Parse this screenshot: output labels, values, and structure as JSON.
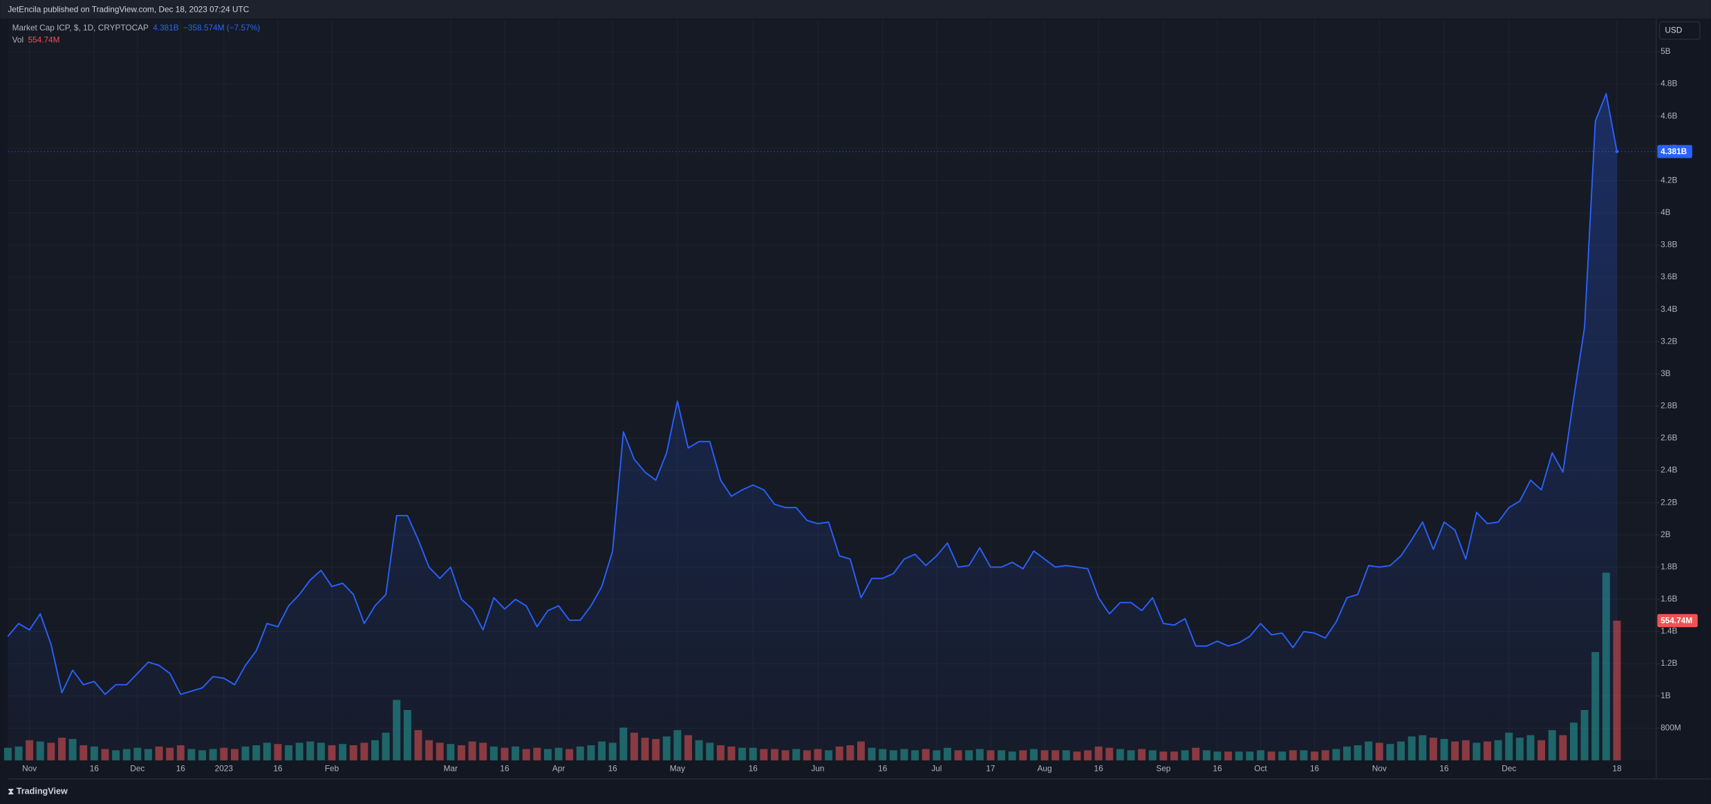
{
  "header": {
    "text": "JetEncila published on TradingView.com, Dec 18, 2023 07:24 UTC"
  },
  "footer": {
    "logo": "TradingView"
  },
  "chart_data": {
    "type": "line",
    "title": "Market Cap ICP, $, 1D, CRYPTOCAP",
    "last_value_label": "4.381B",
    "change": "−358.574M (−7.57%)",
    "currency": "USD",
    "color": "#2962ff",
    "grid": true,
    "categories": [
      null,
      null,
      "Nov",
      null,
      null,
      null,
      null,
      null,
      "16",
      null,
      null,
      null,
      "Dec",
      null,
      null,
      null,
      "16",
      null,
      null,
      null,
      "2023",
      null,
      null,
      null,
      null,
      "16",
      null,
      null,
      null,
      null,
      "Feb",
      null,
      null,
      null,
      null,
      null,
      null,
      null,
      null,
      null,
      null,
      "Mar",
      null,
      null,
      null,
      null,
      "16",
      null,
      null,
      null,
      null,
      "Apr",
      null,
      null,
      null,
      null,
      "16",
      null,
      null,
      null,
      null,
      null,
      "May",
      null,
      null,
      null,
      null,
      null,
      null,
      "16",
      null,
      null,
      null,
      null,
      null,
      "Jun",
      null,
      null,
      null,
      null,
      null,
      "16",
      null,
      null,
      null,
      null,
      "Jul",
      null,
      null,
      null,
      null,
      "17",
      null,
      null,
      null,
      null,
      "Aug",
      null,
      null,
      null,
      null,
      "16",
      null,
      null,
      null,
      null,
      null,
      "Sep",
      null,
      null,
      null,
      null,
      "16",
      null,
      null,
      null,
      "Oct",
      null,
      null,
      null,
      null,
      "16",
      null,
      null,
      null,
      null,
      null,
      "Nov",
      null,
      null,
      null,
      null,
      null,
      "16",
      null,
      null,
      null,
      null,
      null,
      "Dec",
      null,
      null,
      null,
      null,
      null,
      null,
      null,
      null,
      null,
      "18"
    ],
    "values": [
      1.37,
      1.45,
      1.41,
      1.51,
      1.32,
      1.02,
      1.16,
      1.07,
      1.09,
      1.01,
      1.07,
      1.07,
      1.14,
      1.21,
      1.19,
      1.14,
      1.01,
      1.03,
      1.05,
      1.12,
      1.11,
      1.07,
      1.19,
      1.28,
      1.45,
      1.43,
      1.56,
      1.63,
      1.72,
      1.78,
      1.68,
      1.7,
      1.63,
      1.45,
      1.56,
      1.63,
      2.12,
      2.12,
      1.97,
      1.8,
      1.73,
      1.8,
      1.6,
      1.54,
      1.41,
      1.61,
      1.54,
      1.6,
      1.56,
      1.43,
      1.53,
      1.56,
      1.47,
      1.47,
      1.56,
      1.68,
      1.9,
      2.64,
      2.47,
      2.39,
      2.34,
      2.51,
      2.83,
      2.54,
      2.58,
      2.58,
      2.34,
      2.24,
      2.28,
      2.31,
      2.28,
      2.19,
      2.17,
      2.17,
      2.09,
      2.07,
      2.08,
      1.87,
      1.85,
      1.61,
      1.73,
      1.73,
      1.76,
      1.85,
      1.88,
      1.81,
      1.87,
      1.95,
      1.8,
      1.81,
      1.92,
      1.8,
      1.8,
      1.83,
      1.79,
      1.9,
      1.85,
      1.8,
      1.81,
      1.8,
      1.79,
      1.61,
      1.51,
      1.58,
      1.58,
      1.53,
      1.61,
      1.45,
      1.44,
      1.48,
      1.31,
      1.31,
      1.34,
      1.31,
      1.33,
      1.37,
      1.45,
      1.38,
      1.39,
      1.3,
      1.4,
      1.39,
      1.36,
      1.46,
      1.61,
      1.63,
      1.81,
      1.8,
      1.81,
      1.87,
      1.97,
      2.08,
      1.91,
      2.08,
      2.03,
      1.85,
      2.14,
      2.07,
      2.08,
      2.17,
      2.21,
      2.34,
      2.28,
      2.51,
      2.39,
      2.85,
      3.29,
      4.57,
      4.74,
      4.381
    ],
    "ylim": [
      0.6,
      5.2
    ],
    "yticks": [
      {
        "value": 0.8,
        "label": "800M"
      },
      {
        "value": 1,
        "label": "1B"
      },
      {
        "value": 1.2,
        "label": "1.2B"
      },
      {
        "value": 1.4,
        "label": "1.4B"
      },
      {
        "value": 1.6,
        "label": "1.6B"
      },
      {
        "value": 1.8,
        "label": "1.8B"
      },
      {
        "value": 2,
        "label": "2B"
      },
      {
        "value": 2.2,
        "label": "2.2B"
      },
      {
        "value": 2.4,
        "label": "2.4B"
      },
      {
        "value": 2.6,
        "label": "2.6B"
      },
      {
        "value": 2.8,
        "label": "2.8B"
      },
      {
        "value": 3,
        "label": "3B"
      },
      {
        "value": 3.2,
        "label": "3.2B"
      },
      {
        "value": 3.4,
        "label": "3.4B"
      },
      {
        "value": 3.6,
        "label": "3.6B"
      },
      {
        "value": 3.8,
        "label": "3.8B"
      },
      {
        "value": 4,
        "label": "4B"
      },
      {
        "value": 4.2,
        "label": "4.2B"
      },
      {
        "value": 4.4,
        "label": "4.4B"
      },
      {
        "value": 4.6,
        "label": "4.6B"
      },
      {
        "value": 4.8,
        "label": "4.8B"
      },
      {
        "value": 5,
        "label": "5B"
      }
    ],
    "volume": {
      "name": "Vol",
      "last_value_label": "554.74M",
      "up_color": "#26a69a",
      "down_color": "#ef5350",
      "values": [
        50,
        55,
        80,
        75,
        70,
        90,
        85,
        60,
        55,
        45,
        40,
        45,
        50,
        45,
        55,
        50,
        60,
        45,
        40,
        45,
        50,
        45,
        55,
        60,
        70,
        65,
        60,
        70,
        75,
        70,
        60,
        65,
        60,
        70,
        80,
        110,
        240,
        200,
        120,
        80,
        70,
        65,
        60,
        75,
        70,
        55,
        50,
        55,
        45,
        50,
        45,
        50,
        45,
        55,
        60,
        75,
        70,
        130,
        110,
        90,
        85,
        95,
        120,
        100,
        80,
        70,
        60,
        55,
        50,
        50,
        45,
        45,
        40,
        45,
        40,
        45,
        40,
        55,
        60,
        75,
        50,
        45,
        40,
        45,
        40,
        45,
        40,
        50,
        40,
        40,
        45,
        40,
        40,
        35,
        40,
        45,
        40,
        40,
        40,
        35,
        40,
        55,
        50,
        45,
        40,
        45,
        40,
        35,
        35,
        40,
        50,
        40,
        35,
        35,
        35,
        35,
        40,
        35,
        35,
        40,
        40,
        35,
        40,
        45,
        55,
        60,
        75,
        70,
        65,
        75,
        95,
        100,
        90,
        85,
        75,
        80,
        70,
        75,
        80,
        110,
        90,
        100,
        80,
        120,
        100,
        150,
        200,
        430,
        745,
        554.74
      ]
    }
  }
}
